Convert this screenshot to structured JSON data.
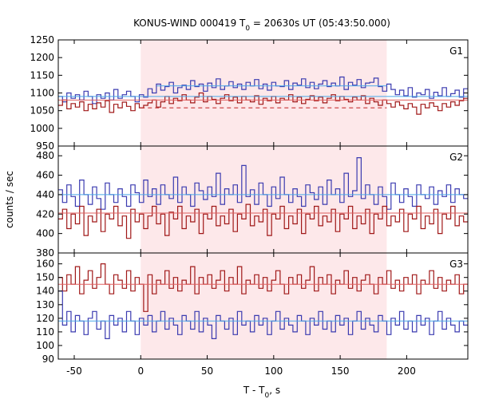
{
  "chart_data": {
    "type": "line",
    "title_main": "KONUS-WIND 000419 T",
    "title_sub": "0",
    "title_rest": " = 20630s UT (05:43:50.000)",
    "ylabel": "counts / sec",
    "xlabel_main": "T - T",
    "xlabel_sub": "0",
    "xlabel_rest": ", s",
    "xlim": [
      -62,
      246
    ],
    "xticks": [
      -50,
      0,
      50,
      100,
      150,
      200
    ],
    "shaded_interval": [
      0,
      185
    ],
    "panels": [
      {
        "name": "G1",
        "ylim": [
          950,
          1250
        ],
        "yticks": [
          950,
          1000,
          1050,
          1100,
          1150,
          1200,
          1250
        ],
        "series": [
          {
            "color": "#3b3bb0",
            "level": 1088,
            "values": [
              1090,
              1075,
              1100,
              1085,
              1095,
              1080,
              1105,
              1090,
              1070,
              1095,
              1085,
              1100,
              1080,
              1110,
              1085,
              1095,
              1105,
              1090,
              1075,
              1095,
              1088,
              1112,
              1100,
              1125,
              1108,
              1118,
              1130,
              1100,
              1115,
              1122,
              1110,
              1135,
              1118,
              1125,
              1105,
              1128,
              1115,
              1140,
              1110,
              1120,
              1132,
              1115,
              1125,
              1110,
              1130,
              1120,
              1138,
              1112,
              1125,
              1108,
              1130,
              1120,
              1118,
              1135,
              1110,
              1128,
              1122,
              1140,
              1115,
              1130,
              1112,
              1125,
              1135,
              1118,
              1128,
              1120,
              1145,
              1110,
              1130,
              1122,
              1138,
              1115,
              1128,
              1130,
              1142,
              1118,
              1105,
              1125,
              1110,
              1095,
              1108,
              1092,
              1115,
              1088,
              1100,
              1095,
              1110,
              1085,
              1102,
              1092,
              1115,
              1090,
              1098,
              1108,
              1088,
              1112
            ]
          },
          {
            "color": "#a01818",
            "level": 1062,
            "values": [
              1065,
              1080,
              1055,
              1070,
              1060,
              1075,
              1050,
              1068,
              1055,
              1072,
              1060,
              1078,
              1045,
              1068,
              1058,
              1074,
              1062,
              1050,
              1070,
              1058,
              1065,
              1072,
              1080,
              1060,
              1075,
              1090,
              1070,
              1085,
              1078,
              1095,
              1080,
              1072,
              1088,
              1100,
              1075,
              1090,
              1082,
              1070,
              1085,
              1095,
              1078,
              1088,
              1072,
              1090,
              1080,
              1075,
              1092,
              1068,
              1085,
              1078,
              1090,
              1072,
              1085,
              1080,
              1095,
              1075,
              1088,
              1070,
              1082,
              1092,
              1078,
              1088,
              1072,
              1085,
              1095,
              1078,
              1090,
              1082,
              1075,
              1088,
              1080,
              1092,
              1070,
              1085,
              1075,
              1065,
              1080,
              1070,
              1060,
              1075,
              1065,
              1055,
              1070,
              1060,
              1040,
              1068,
              1058,
              1072,
              1062,
              1050,
              1070,
              1060,
              1075,
              1065,
              1078,
              1085
            ]
          }
        ],
        "fits": [
          {
            "color": "#4aa8e8",
            "x": [
              -62,
              246
            ],
            "y": [
              1090,
              1090
            ]
          },
          {
            "color": "#4aa8e8",
            "x": [
              12,
              185
            ],
            "y": [
              1120,
              1120
            ]
          },
          {
            "color": "#e06060",
            "x": [
              -62,
              246
            ],
            "y": [
              1080,
              1080
            ]
          },
          {
            "color": "#c02020",
            "dashed": true,
            "x": [
              0,
              185
            ],
            "y": [
              1058,
              1058
            ]
          }
        ]
      },
      {
        "name": "G2",
        "ylim": [
          380,
          490
        ],
        "yticks": [
          380,
          400,
          420,
          440,
          460,
          480
        ],
        "series": [
          {
            "color": "#3b3bb0",
            "level": 440,
            "values": [
              445,
              432,
              450,
              438,
              428,
              455,
              440,
              430,
              448,
              436,
              425,
              452,
              440,
              432,
              446,
              438,
              428,
              450,
              442,
              432,
              455,
              438,
              446,
              430,
              450,
              440,
              436,
              458,
              432,
              448,
              440,
              428,
              452,
              444,
              435,
              448,
              438,
              462,
              430,
              446,
              440,
              450,
              432,
              470,
              438,
              445,
              430,
              452,
              440,
              428,
              448,
              436,
              458,
              440,
              432,
              446,
              438,
              428,
              450,
              442,
              435,
              448,
              430,
              455,
              440,
              446,
              432,
              462,
              438,
              444,
              478,
              436,
              450,
              440,
              430,
              448,
              438,
              425,
              452,
              440,
              432,
              446,
              438,
              428,
              450,
              440,
              436,
              448,
              430,
              444,
              438,
              450,
              432,
              446,
              440,
              436
            ]
          },
          {
            "color": "#a01818",
            "level": 420,
            "values": [
              415,
              425,
              405,
              420,
              410,
              428,
              398,
              418,
              412,
              425,
              402,
              420,
              415,
              428,
              408,
              418,
              395,
              425,
              412,
              420,
              405,
              418,
              428,
              410,
              420,
              398,
              422,
              415,
              428,
              405,
              418,
              412,
              425,
              400,
              420,
              415,
              428,
              408,
              418,
              410,
              425,
              402,
              420,
              415,
              430,
              408,
              418,
              412,
              425,
              398,
              420,
              415,
              428,
              405,
              418,
              410,
              425,
              400,
              420,
              415,
              428,
              408,
              418,
              412,
              425,
              402,
              420,
              415,
              428,
              405,
              418,
              410,
              425,
              400,
              420,
              415,
              428,
              408,
              418,
              412,
              425,
              402,
              420,
              415,
              428,
              405,
              418,
              410,
              425,
              400,
              420,
              415,
              428,
              408,
              418,
              412
            ]
          }
        ],
        "fits": [
          {
            "color": "#4aa8e8",
            "x": [
              -62,
              246
            ],
            "y": [
              440,
              440
            ]
          },
          {
            "color": "#e06060",
            "x": [
              -62,
              246
            ],
            "y": [
              421,
              421
            ]
          }
        ]
      },
      {
        "name": "G3",
        "ylim": [
          90,
          168
        ],
        "yticks": [
          90,
          100,
          110,
          120,
          130,
          140,
          150,
          160
        ],
        "series": [
          {
            "color": "#a01818",
            "level": 145,
            "values": [
              150,
              140,
              152,
              145,
              158,
              138,
              148,
              155,
              142,
              150,
              160,
              145,
              138,
              152,
              148,
              142,
              155,
              140,
              150,
              145,
              125,
              152,
              138,
              148,
              145,
              155,
              142,
              150,
              140,
              148,
              145,
              158,
              138,
              150,
              145,
              152,
              142,
              148,
              155,
              140,
              150,
              145,
              158,
              138,
              148,
              145,
              152,
              142,
              150,
              140,
              148,
              155,
              145,
              138,
              150,
              145,
              152,
              142,
              148,
              158,
              140,
              150,
              145,
              152,
              138,
              148,
              145,
              155,
              142,
              150,
              140,
              148,
              152,
              145,
              138,
              150,
              145,
              155,
              142,
              148,
              140,
              150,
              145,
              152,
              138,
              148,
              145,
              155,
              142,
              150,
              140,
              148,
              145,
              152,
              138,
              145
            ]
          },
          {
            "color": "#3b3bb0",
            "level": 118,
            "values": [
              140,
              115,
              125,
              110,
              122,
              118,
              108,
              120,
              125,
              112,
              118,
              105,
              122,
              115,
              120,
              110,
              125,
              118,
              108,
              120,
              115,
              122,
              110,
              118,
              125,
              112,
              120,
              115,
              108,
              122,
              118,
              112,
              125,
              110,
              120,
              115,
              105,
              122,
              118,
              112,
              120,
              108,
              125,
              115,
              118,
              110,
              122,
              115,
              120,
              108,
              118,
              125,
              112,
              120,
              115,
              110,
              122,
              118,
              108,
              120,
              115,
              125,
              112,
              118,
              110,
              122,
              115,
              120,
              108,
              118,
              125,
              112,
              120,
              115,
              110,
              122,
              118,
              108,
              120,
              115,
              125,
              112,
              118,
              110,
              122,
              115,
              120,
              108,
              118,
              125,
              112,
              120,
              115,
              110,
              118,
              115
            ]
          }
        ],
        "fits": [
          {
            "color": "#e06060",
            "x": [
              -62,
              246
            ],
            "y": [
              145,
              145
            ]
          },
          {
            "color": "#4aa8e8",
            "x": [
              -62,
              246
            ],
            "y": [
              118,
              118
            ]
          }
        ]
      }
    ]
  }
}
